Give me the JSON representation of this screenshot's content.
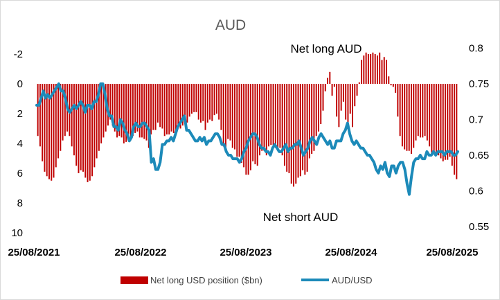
{
  "chart_data": {
    "type": "bar+line",
    "title": "AUD",
    "annotations": {
      "top": "Net long AUD",
      "bottom": "Net short AUD"
    },
    "left_axis": {
      "ticks": [
        "-2",
        "0",
        "2",
        "4",
        "6",
        "8",
        "10"
      ],
      "values": [
        -2,
        0,
        2,
        4,
        6,
        8,
        10
      ],
      "inverted": true,
      "range": [
        -2,
        10
      ]
    },
    "right_axis": {
      "ticks": [
        "0.8",
        "0.75",
        "0.7",
        "0.65",
        "0.6",
        "0.55"
      ],
      "values": [
        0.8,
        0.75,
        0.7,
        0.65,
        0.6,
        0.55
      ],
      "range": [
        0.55,
        0.8
      ]
    },
    "x_ticks": [
      "25/08/2021",
      "25/08/2022",
      "25/08/2023",
      "25/08/2024",
      "25/08/2025"
    ],
    "legend": {
      "bars": "Net long USD position ($bn)",
      "line": "AUD/USD"
    },
    "colors": {
      "bars": "#c00000",
      "line": "#1c8ab9"
    },
    "series": [
      {
        "name": "Net long USD position ($bn)",
        "axis": "left",
        "kind": "bar",
        "values": [
          3.5,
          4.2,
          5.2,
          5.9,
          6.2,
          6.4,
          6.5,
          6.3,
          5.6,
          5.0,
          4.5,
          3.8,
          3.5,
          3.2,
          3.5,
          4.2,
          4.8,
          5.5,
          6.0,
          5.8,
          5.9,
          6.3,
          6.6,
          6.5,
          6.2,
          5.6,
          5.0,
          4.5,
          4.0,
          3.6,
          3.2,
          2.8,
          2.4,
          2.8,
          3.2,
          3.6,
          3.5,
          3.6,
          4.0,
          3.9,
          3.4,
          3.8,
          3.5,
          3.3,
          3.2,
          3.6,
          3.6,
          3.7,
          3.8,
          4.3,
          3.4,
          3.1,
          3.1,
          2.6,
          2.9,
          3.0,
          3.5,
          3.4,
          3.4,
          3.2,
          3.3,
          3.3,
          2.8,
          3.0,
          2.8,
          2.7,
          2.6,
          2.2,
          2.0,
          1.9,
          1.9,
          2.4,
          2.6,
          2.5,
          3.1,
          2.6,
          2.4,
          2.5,
          2.1,
          2.0,
          2.4,
          3.1,
          4.2,
          4.3,
          3.7,
          3.8,
          4.3,
          4.4,
          4.9,
          4.9,
          5.3,
          5.6,
          6.1,
          6.1,
          5.8,
          5.2,
          5.4,
          5.5,
          4.8,
          4.5,
          4.5,
          4.8,
          4.2,
          4.1,
          4.1,
          4.3,
          4.4,
          4.3,
          4.8,
          5.5,
          5.9,
          6.0,
          6.7,
          6.9,
          6.7,
          6.3,
          6.2,
          5.8,
          6.1,
          5.9,
          5.0,
          4.7,
          4.5,
          3.5,
          3.2,
          2.7,
          1.8,
          0.5,
          -0.4,
          -0.8,
          0.8,
          0.2,
          2.2,
          2.9,
          1.8,
          1.2,
          2.4,
          2.6,
          2.0,
          2.9,
          1.5,
          0.8,
          -0.1,
          -1.6,
          -1.9,
          -2.1,
          -2.0,
          -2.0,
          -2.1,
          -2.0,
          -1.9,
          -2.1,
          -1.6,
          -1.8,
          -1.6,
          -0.5,
          0.1,
          0.2,
          0.6,
          2.2,
          3.5,
          4.2,
          4.4,
          4.5,
          4.5,
          4.7,
          4.3,
          3.8,
          3.5,
          3.6,
          3.6,
          3.5,
          3.8,
          4.2,
          4.7,
          4.7,
          4.7,
          4.8,
          5.0,
          5.2,
          5.1,
          5.1,
          4.9,
          5.5,
          6.1,
          6.4
        ]
      },
      {
        "name": "AUD/USD",
        "axis": "right",
        "kind": "line",
        "values": [
          0.72,
          0.72,
          0.73,
          0.74,
          0.73,
          0.735,
          0.73,
          0.735,
          0.74,
          0.745,
          0.75,
          0.74,
          0.74,
          0.73,
          0.715,
          0.71,
          0.715,
          0.72,
          0.715,
          0.72,
          0.725,
          0.72,
          0.71,
          0.72,
          0.72,
          0.715,
          0.725,
          0.725,
          0.735,
          0.75,
          0.75,
          0.735,
          0.715,
          0.705,
          0.705,
          0.69,
          0.69,
          0.685,
          0.7,
          0.695,
          0.685,
          0.68,
          0.67,
          0.675,
          0.69,
          0.695,
          0.69,
          0.69,
          0.695,
          0.695,
          0.69,
          0.685,
          0.64,
          0.645,
          0.63,
          0.63,
          0.64,
          0.665,
          0.665,
          0.67,
          0.67,
          0.675,
          0.67,
          0.68,
          0.69,
          0.695,
          0.7,
          0.705,
          0.685,
          0.685,
          0.68,
          0.675,
          0.67,
          0.67,
          0.675,
          0.67,
          0.675,
          0.665,
          0.67,
          0.67,
          0.675,
          0.68,
          0.68,
          0.675,
          0.665,
          0.665,
          0.655,
          0.65,
          0.65,
          0.645,
          0.645,
          0.645,
          0.64,
          0.645,
          0.655,
          0.66,
          0.67,
          0.675,
          0.68,
          0.68,
          0.675,
          0.665,
          0.66,
          0.66,
          0.655,
          0.655,
          0.65,
          0.66,
          0.665,
          0.66,
          0.655,
          0.655,
          0.66,
          0.665,
          0.655,
          0.66,
          0.66,
          0.665,
          0.665,
          0.67,
          0.66,
          0.65,
          0.655,
          0.66,
          0.67,
          0.675,
          0.67,
          0.665,
          0.675,
          0.68,
          0.675,
          0.67,
          0.665,
          0.67,
          0.66,
          0.66,
          0.67,
          0.67,
          0.67,
          0.68,
          0.685,
          0.695,
          0.68,
          0.67,
          0.665,
          0.67,
          0.665,
          0.66,
          0.66,
          0.655,
          0.65,
          0.65,
          0.645,
          0.64,
          0.63,
          0.625,
          0.635,
          0.63,
          0.64,
          0.625,
          0.62,
          0.635,
          0.635,
          0.625,
          0.635,
          0.64,
          0.64,
          0.63,
          0.61,
          0.595,
          0.62,
          0.64,
          0.645,
          0.645,
          0.65,
          0.645,
          0.645,
          0.655,
          0.65,
          0.65,
          0.655,
          0.65,
          0.655,
          0.655,
          0.655,
          0.65,
          0.655,
          0.655,
          0.655,
          0.65,
          0.65,
          0.655
        ]
      }
    ]
  }
}
